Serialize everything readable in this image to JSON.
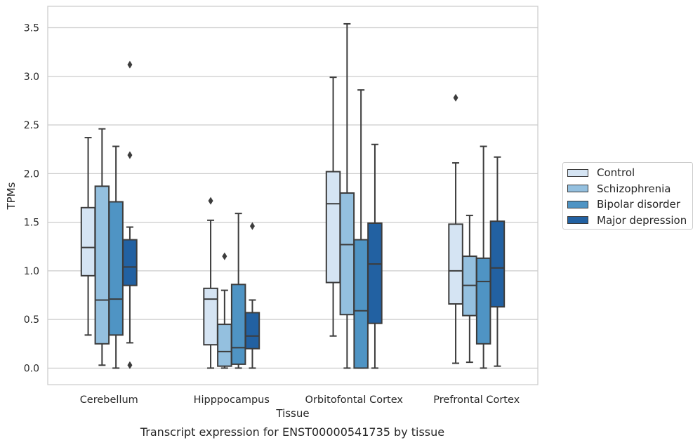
{
  "caption": "Transcript expression for ENST00000541735 by tissue",
  "legend_entries": [
    {
      "name": "Control",
      "color": "#d5e4f3"
    },
    {
      "name": "Schizophrenia",
      "color": "#94c0df"
    },
    {
      "name": "Bipolar disorder",
      "color": "#4f94c4"
    },
    {
      "name": "Major depression",
      "color": "#2261a2"
    }
  ],
  "chart_data": {
    "type": "boxplot",
    "xlabel": "Tissue",
    "ylabel": "TPMs",
    "ylim": [
      -0.17,
      3.72
    ],
    "yticks": [
      0.0,
      0.5,
      1.0,
      1.5,
      2.0,
      2.5,
      3.0,
      3.5
    ],
    "ytick_labels": [
      "0.0",
      "0.5",
      "1.0",
      "1.5",
      "2.0",
      "2.5",
      "3.0",
      "3.5"
    ],
    "grid": "horizontal",
    "legend_position": "right",
    "categories": [
      "Cerebellum",
      "Hipppocampus",
      "Orbitofontal Cortex",
      "Prefrontal Cortex"
    ],
    "series": [
      {
        "name": "Control",
        "color": "#d5e4f3",
        "boxes": [
          {
            "whisker_low": 0.34,
            "q1": 0.95,
            "median": 1.24,
            "q3": 1.65,
            "whisker_high": 2.37,
            "outliers": []
          },
          {
            "whisker_low": 0.0,
            "q1": 0.24,
            "median": 0.71,
            "q3": 0.82,
            "whisker_high": 1.52,
            "outliers": [
              1.72
            ]
          },
          {
            "whisker_low": 0.33,
            "q1": 0.88,
            "median": 1.69,
            "q3": 2.02,
            "whisker_high": 2.99,
            "outliers": []
          },
          {
            "whisker_low": 0.05,
            "q1": 0.66,
            "median": 1.0,
            "q3": 1.48,
            "whisker_high": 2.11,
            "outliers": [
              2.78
            ]
          }
        ]
      },
      {
        "name": "Schizophrenia",
        "color": "#94c0df",
        "boxes": [
          {
            "whisker_low": 0.03,
            "q1": 0.25,
            "median": 0.7,
            "q3": 1.87,
            "whisker_high": 2.46,
            "outliers": []
          },
          {
            "whisker_low": 0.0,
            "q1": 0.02,
            "median": 0.17,
            "q3": 0.45,
            "whisker_high": 0.8,
            "outliers": [
              1.15
            ]
          },
          {
            "whisker_low": 0.0,
            "q1": 0.55,
            "median": 1.27,
            "q3": 1.8,
            "whisker_high": 3.54,
            "outliers": []
          },
          {
            "whisker_low": 0.06,
            "q1": 0.54,
            "median": 0.85,
            "q3": 1.15,
            "whisker_high": 1.57,
            "outliers": []
          }
        ]
      },
      {
        "name": "Bipolar disorder",
        "color": "#4f94c4",
        "boxes": [
          {
            "whisker_low": 0.0,
            "q1": 0.34,
            "median": 0.71,
            "q3": 1.71,
            "whisker_high": 2.28,
            "outliers": []
          },
          {
            "whisker_low": 0.0,
            "q1": 0.04,
            "median": 0.21,
            "q3": 0.86,
            "whisker_high": 1.59,
            "outliers": []
          },
          {
            "whisker_low": 0.0,
            "q1": 0.0,
            "median": 0.59,
            "q3": 1.32,
            "whisker_high": 2.86,
            "outliers": []
          },
          {
            "whisker_low": 0.0,
            "q1": 0.25,
            "median": 0.89,
            "q3": 1.13,
            "whisker_high": 2.28,
            "outliers": []
          }
        ]
      },
      {
        "name": "Major depression",
        "color": "#2261a2",
        "boxes": [
          {
            "whisker_low": 0.26,
            "q1": 0.85,
            "median": 1.04,
            "q3": 1.32,
            "whisker_high": 1.45,
            "outliers": [
              3.12,
              2.19,
              0.03
            ]
          },
          {
            "whisker_low": 0.0,
            "q1": 0.2,
            "median": 0.33,
            "q3": 0.57,
            "whisker_high": 0.7,
            "outliers": [
              1.46
            ]
          },
          {
            "whisker_low": 0.0,
            "q1": 0.46,
            "median": 1.07,
            "q3": 1.49,
            "whisker_high": 2.3,
            "outliers": []
          },
          {
            "whisker_low": 0.02,
            "q1": 0.63,
            "median": 1.03,
            "q3": 1.51,
            "whisker_high": 2.17,
            "outliers": []
          }
        ]
      }
    ]
  }
}
